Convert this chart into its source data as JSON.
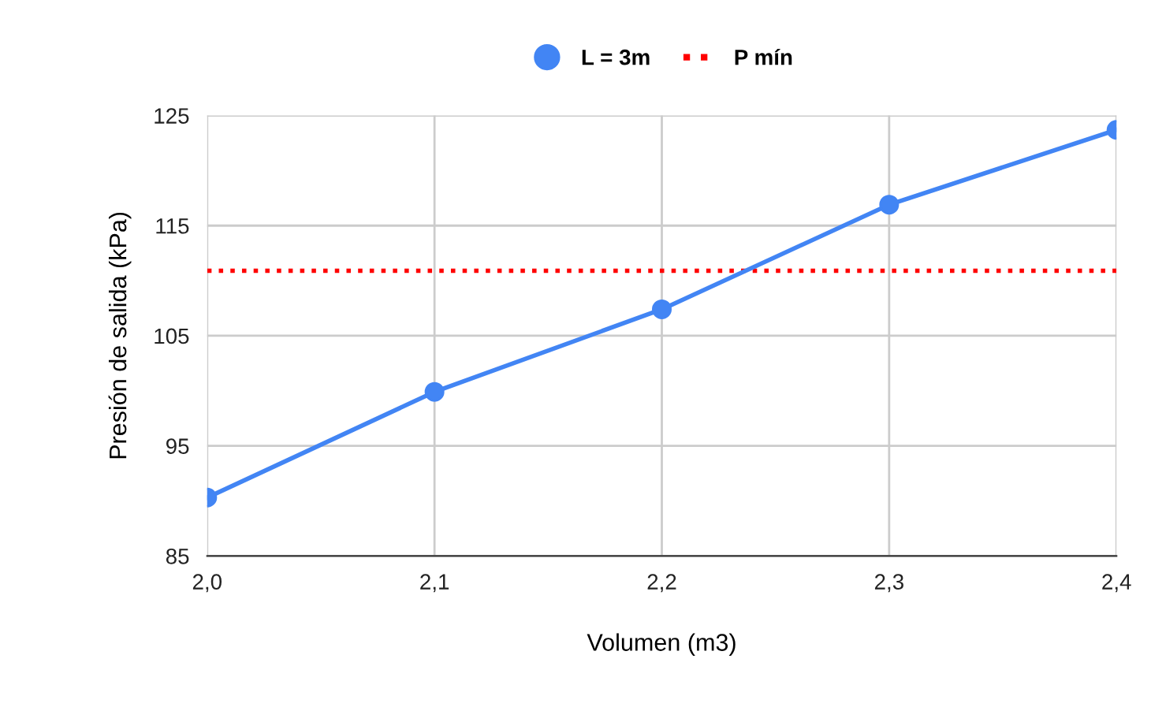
{
  "chart_data": {
    "type": "line",
    "xlabel": "Volumen (m3)",
    "ylabel": "Presión de salida (kPa)",
    "x": [
      2.0,
      2.1,
      2.2,
      2.3,
      2.4
    ],
    "series": [
      {
        "name": "L = 3m",
        "color": "#4285f4",
        "values": [
          90.3,
          99.9,
          107.4,
          116.9,
          123.7
        ]
      }
    ],
    "ref_lines": [
      {
        "axis": "y",
        "value": 110.9,
        "label": "P mín",
        "color": "#ff0000",
        "line_style": "dotted"
      }
    ],
    "xlim": [
      2.0,
      2.4
    ],
    "xticks": [
      {
        "value": 2.0,
        "label": "2,0"
      },
      {
        "value": 2.1,
        "label": "2,1"
      },
      {
        "value": 2.2,
        "label": "2,2"
      },
      {
        "value": 2.3,
        "label": "2,3"
      },
      {
        "value": 2.4,
        "label": "2,4"
      }
    ],
    "ylim": [
      85,
      125
    ],
    "yticks": [
      85,
      95,
      105,
      115,
      125
    ],
    "grid": true,
    "legend": "top",
    "marker": "circle",
    "line_style": "solid"
  }
}
